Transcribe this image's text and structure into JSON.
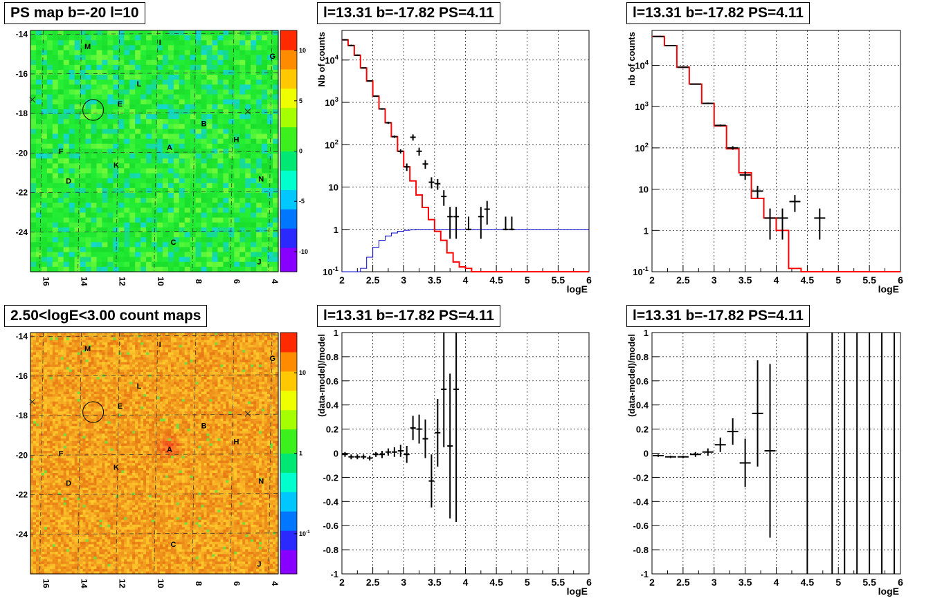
{
  "titles": {
    "map_ps": "PS map b=-20 l=10",
    "map_counts": "2.50<logE<3.00 count maps",
    "spec_left": "l=13.31 b=-17.82 PS=4.11",
    "spec_right": "l=13.31 b=-17.82 PS=4.11",
    "resid_left": "l=13.31 b=-17.82 PS=4.11",
    "resid_right": "l=13.31 b=-17.82 PS=4.11"
  },
  "maps": {
    "x_ticks": [
      "16",
      "14",
      "12",
      "10",
      "8",
      "6",
      "4"
    ],
    "y_ticks": [
      "-14",
      "-16",
      "-18",
      "-20",
      "-22",
      "-24"
    ],
    "x_tick_values": [
      16,
      14,
      12,
      10,
      8,
      6,
      4
    ],
    "y_tick_values": [
      -14,
      -16,
      -18,
      -20,
      -22,
      -24
    ],
    "xlim": [
      16.6,
      3.6
    ],
    "ylim": [
      -26,
      -13.8
    ],
    "source_labels": [
      {
        "label": "M",
        "l": 13.6,
        "b": -14.6
      },
      {
        "label": "I",
        "l": 9.8,
        "b": -14.4
      },
      {
        "label": "G",
        "l": 3.9,
        "b": -15.1
      },
      {
        "label": "L",
        "l": 10.9,
        "b": -16.5
      },
      {
        "label": "E",
        "l": 11.9,
        "b": -17.5
      },
      {
        "label": "B",
        "l": 7.5,
        "b": -18.5
      },
      {
        "label": "H",
        "l": 5.8,
        "b": -19.3
      },
      {
        "label": "A",
        "l": 9.3,
        "b": -19.7
      },
      {
        "label": "F",
        "l": 15.0,
        "b": -19.9
      },
      {
        "label": "K",
        "l": 12.1,
        "b": -20.6
      },
      {
        "label": "D",
        "l": 14.6,
        "b": -21.4
      },
      {
        "label": "N",
        "l": 4.5,
        "b": -21.3
      },
      {
        "label": "C",
        "l": 9.1,
        "b": -24.5
      },
      {
        "label": "J",
        "l": 4.6,
        "b": -25.5
      }
    ],
    "circle": {
      "l": 13.31,
      "b": -17.82
    },
    "crosses": [
      {
        "l": 16.5,
        "b": -17.3
      },
      {
        "l": 5.2,
        "b": -17.9
      }
    ],
    "ps_palette": {
      "min": -12,
      "max": 12,
      "ticks": [
        "10",
        "5",
        "0",
        "-5",
        "-10"
      ],
      "tick_values": [
        10,
        5,
        0,
        -5,
        -10
      ]
    },
    "counts_palette": {
      "log_min": -1.5,
      "log_max": 1.5,
      "ticks": [
        "10",
        "1",
        "10^-1"
      ],
      "tick_values": [
        1,
        0,
        -1
      ]
    }
  },
  "chart_data": [
    {
      "type": "line",
      "name": "spectrum_left",
      "xlabel": "logE",
      "ylabel": "Nb of counts",
      "xlim": [
        2,
        6
      ],
      "ylim": [
        0.1,
        50000
      ],
      "yscale": "log",
      "grid": true,
      "x_ticks": [
        "2",
        "2.5",
        "3",
        "3.5",
        "4",
        "4.5",
        "5",
        "5.5",
        "6"
      ],
      "y_ticks": [
        "10^-1",
        "1",
        "10",
        "10^2",
        "10^3",
        "10^4"
      ],
      "model_total": {
        "color": "#ff0000",
        "edges": [
          2.0,
          2.1,
          2.2,
          2.3,
          2.4,
          2.5,
          2.6,
          2.7,
          2.8,
          2.9,
          3.0,
          3.1,
          3.2,
          3.3,
          3.4,
          3.5,
          3.6,
          3.7,
          3.8,
          3.9,
          4.0,
          4.1,
          4.2,
          4.3,
          4.4,
          6.0
        ],
        "values": [
          30000,
          22000,
          13000,
          6500,
          3200,
          1400,
          700,
          330,
          155,
          70,
          30,
          14,
          6.5,
          3.3,
          1.7,
          0.9,
          0.55,
          0.28,
          0.17,
          0.13,
          0.12,
          0.1,
          0.1,
          0.1,
          0.1
        ]
      },
      "model_exposure": {
        "color": "#0000cc",
        "edges": [
          2.0,
          2.1,
          2.2,
          2.3,
          2.4,
          2.5,
          2.6,
          2.7,
          2.8,
          2.9,
          3.0,
          3.1,
          3.2,
          6.0
        ],
        "values": [
          0.1,
          0.1,
          0.1,
          0.12,
          0.22,
          0.38,
          0.55,
          0.7,
          0.82,
          0.9,
          0.95,
          0.98,
          1.0
        ]
      },
      "data": {
        "x": [
          2.05,
          2.15,
          2.25,
          2.35,
          2.45,
          2.55,
          2.65,
          2.75,
          2.85,
          2.95,
          3.05,
          3.15,
          3.25,
          3.35,
          3.45,
          3.55,
          3.65,
          3.75,
          3.85,
          4.05,
          4.25,
          4.35,
          4.65,
          4.75
        ],
        "y": [
          30000,
          22000,
          13000,
          6500,
          3200,
          1400,
          700,
          330,
          155,
          70,
          30,
          150,
          70,
          35,
          13,
          12,
          6,
          2,
          2,
          1,
          2,
          3,
          1,
          1
        ],
        "err_lo": [
          29000,
          21000,
          12500,
          6300,
          3100,
          1350,
          670,
          310,
          145,
          62,
          24,
          125,
          55,
          27,
          9.3,
          8.6,
          3.6,
          0.6,
          0.6,
          0.95,
          0.6,
          1.3,
          0.95,
          0.95
        ],
        "err_hi": [
          31000,
          23000,
          13500,
          6700,
          3300,
          1450,
          730,
          350,
          165,
          78,
          36,
          175,
          85,
          43,
          17,
          15.5,
          8.4,
          3.4,
          3.4,
          2.0,
          3.4,
          4.7,
          2.0,
          2.0
        ]
      }
    },
    {
      "type": "line",
      "name": "spectrum_right",
      "xlabel": "logE",
      "ylabel": "nb of counts",
      "xlim": [
        2,
        6
      ],
      "ylim": [
        0.1,
        70000
      ],
      "yscale": "log",
      "grid": true,
      "x_ticks": [
        "2",
        "2.5",
        "3",
        "3.5",
        "4",
        "4.5",
        "5",
        "5.5",
        "6"
      ],
      "y_ticks": [
        "10^-1",
        "1",
        "10",
        "10^2",
        "10^3",
        "10^4"
      ],
      "model_total": {
        "color": "#ff0000",
        "edges": [
          2.0,
          2.2,
          2.4,
          2.6,
          2.8,
          3.0,
          3.2,
          3.4,
          3.6,
          3.8,
          4.0,
          4.2,
          4.4,
          6.0
        ],
        "values": [
          50000,
          30000,
          9000,
          3500,
          1200,
          340,
          95,
          25,
          6,
          2,
          1,
          0.12,
          0.1
        ]
      },
      "data": {
        "x": [
          2.1,
          2.3,
          2.5,
          2.7,
          2.9,
          3.1,
          3.3,
          3.5,
          3.7,
          3.9,
          4.1,
          4.3,
          4.7
        ],
        "y": [
          50000,
          30000,
          9000,
          3500,
          1200,
          350,
          100,
          22,
          9,
          2,
          2,
          5,
          2
        ],
        "err_lo": [
          49000,
          29500,
          8800,
          3400,
          1150,
          330,
          90,
          17,
          6,
          0.6,
          0.6,
          2.8,
          0.6
        ],
        "err_hi": [
          51000,
          30500,
          9200,
          3600,
          1250,
          370,
          110,
          27,
          12,
          3.4,
          3.4,
          7.2,
          3.4
        ]
      }
    },
    {
      "type": "scatter",
      "name": "residual_left",
      "xlabel": "logE",
      "ylabel": "(data-model)/model",
      "xlim": [
        2,
        6
      ],
      "ylim": [
        -1,
        1
      ],
      "grid": true,
      "x_ticks": [
        "2",
        "2.5",
        "3",
        "3.5",
        "4",
        "4.5",
        "5",
        "5.5",
        "6"
      ],
      "y_ticks": [
        "-1",
        "-0.8",
        "-0.6",
        "-0.4",
        "-0.2",
        "0",
        "0.2",
        "0.4",
        "0.6",
        "0.8",
        "1"
      ],
      "x": [
        2.05,
        2.15,
        2.25,
        2.35,
        2.45,
        2.55,
        2.65,
        2.75,
        2.85,
        2.95,
        3.05,
        3.15,
        3.25,
        3.35,
        3.45,
        3.55,
        3.65,
        3.75,
        3.85
      ],
      "y": [
        -0.01,
        -0.03,
        -0.03,
        -0.03,
        -0.04,
        -0.01,
        -0.01,
        0.01,
        0.01,
        0.02,
        -0.01,
        0.21,
        0.2,
        0.12,
        -0.23,
        0.17,
        0.53,
        0.06,
        0.53
      ],
      "err": [
        0.02,
        0.02,
        0.02,
        0.02,
        0.02,
        0.02,
        0.03,
        0.03,
        0.04,
        0.05,
        0.07,
        0.1,
        0.12,
        0.16,
        0.22,
        0.28,
        0.48,
        0.6,
        1.1
      ]
    },
    {
      "type": "scatter",
      "name": "residual_right",
      "xlabel": "logE",
      "ylabel": "(data-model)/model",
      "xlim": [
        2,
        6
      ],
      "ylim": [
        -1,
        1
      ],
      "grid": true,
      "x_ticks": [
        "2",
        "2.5",
        "3",
        "3.5",
        "4",
        "4.5",
        "5",
        "5.5",
        "6"
      ],
      "y_ticks": [
        "-1",
        "-0.8",
        "-0.6",
        "-0.4",
        "-0.2",
        "0",
        "0.2",
        "0.4",
        "0.6",
        "0.8",
        "1"
      ],
      "x": [
        2.1,
        2.3,
        2.5,
        2.7,
        2.9,
        3.1,
        3.3,
        3.5,
        3.7,
        3.9
      ],
      "y": [
        -0.02,
        -0.03,
        -0.03,
        -0.01,
        0.01,
        0.07,
        0.18,
        -0.08,
        0.33,
        0.02
      ],
      "err": [
        0.01,
        0.01,
        0.01,
        0.02,
        0.03,
        0.06,
        0.11,
        0.2,
        0.44,
        0.72
      ],
      "vertical_bars_x": [
        4.5,
        4.9,
        5.1,
        5.3,
        5.5,
        5.7,
        5.9
      ]
    }
  ]
}
